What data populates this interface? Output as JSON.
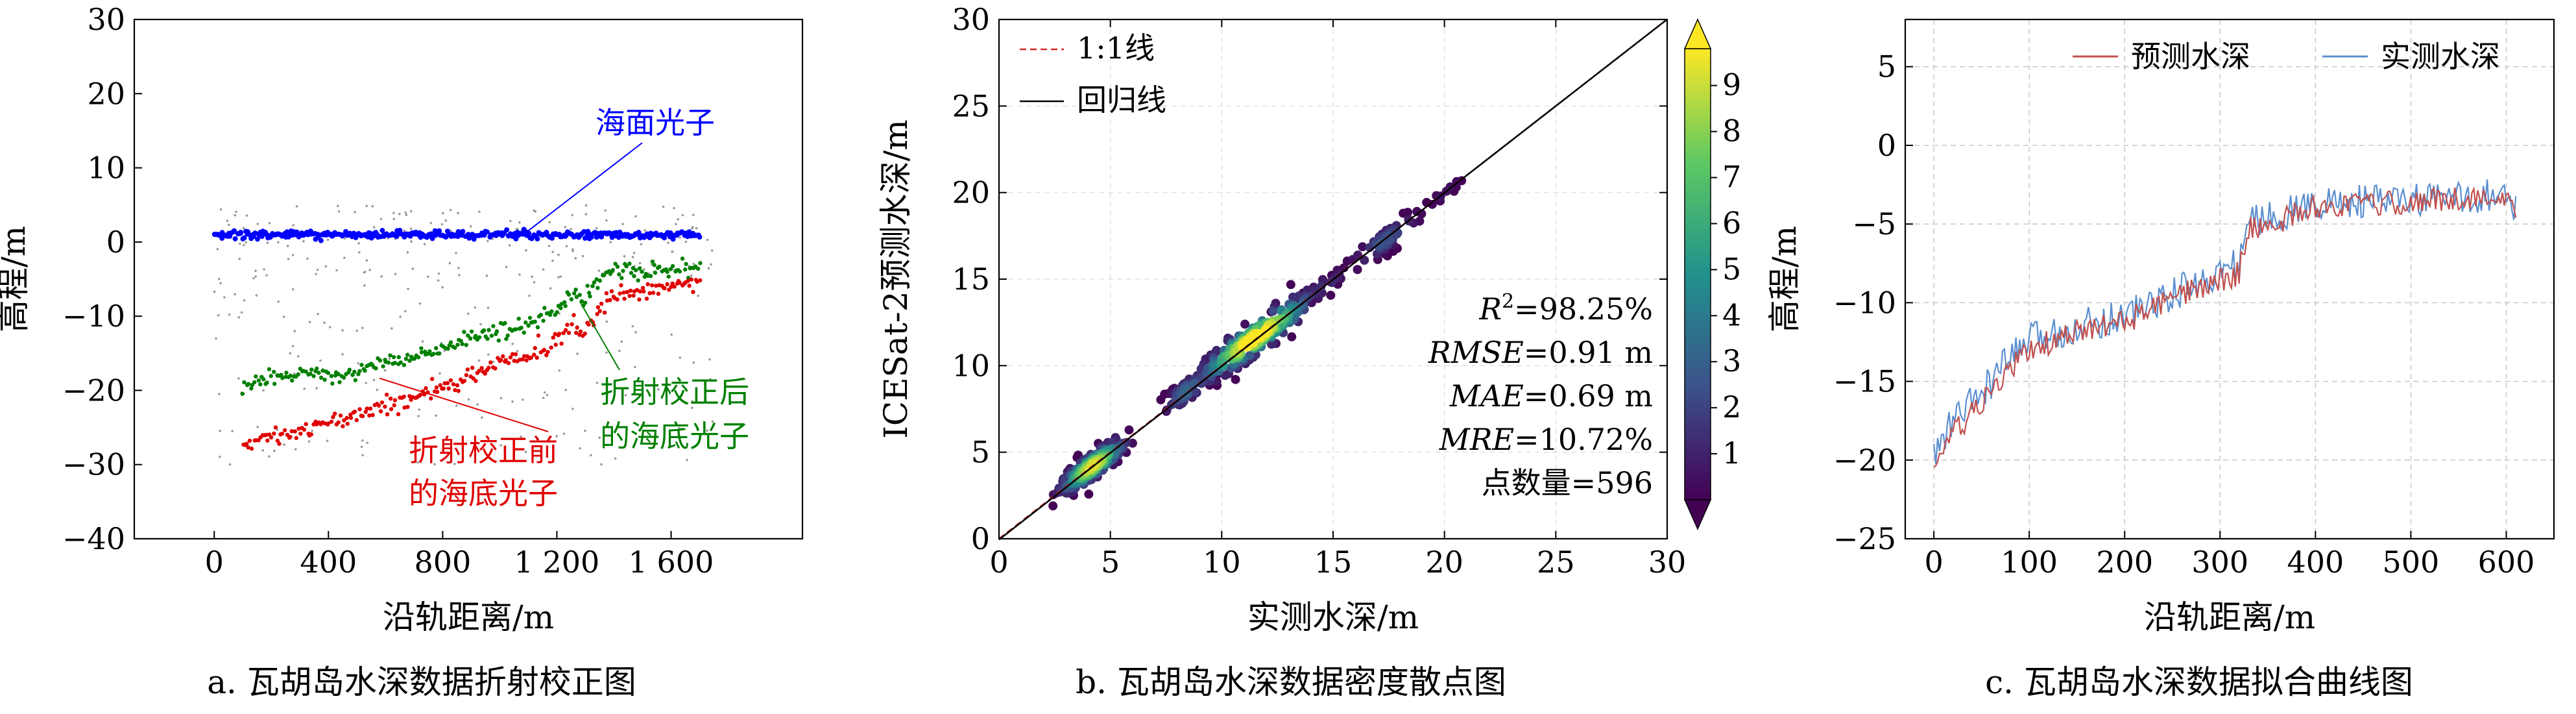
{
  "figure": {
    "title": ""
  },
  "chart_data": [
    {
      "type": "scatter",
      "caption": "a. 瓦胡岛水深数据折射校正图",
      "xlabel": "沿轨距离/m",
      "ylabel": "高程/m",
      "xlim": [
        -280,
        2060
      ],
      "ylim": [
        -40,
        30
      ],
      "xticks": [
        0,
        400,
        800,
        1200,
        1600
      ],
      "xtick_labels": [
        "0",
        "400",
        "800",
        "1 200",
        "1 600"
      ],
      "yticks": [
        -40,
        -30,
        -20,
        -10,
        0,
        10,
        20,
        30
      ],
      "ytick_labels": [
        "−40",
        "−30",
        "−20",
        "−10",
        "0",
        "10",
        "20",
        "30"
      ],
      "grid": false,
      "series": [
        {
          "name": "海面光子",
          "color": "#0000ff",
          "x": [
            0,
            100,
            200,
            300,
            400,
            500,
            600,
            700,
            800,
            900,
            1000,
            1100,
            1200,
            1300,
            1400,
            1500,
            1600,
            1700
          ],
          "y": [
            1,
            1,
            1,
            1,
            1,
            1,
            1,
            1,
            1,
            1,
            1,
            1,
            1,
            1,
            1,
            1,
            1,
            1
          ]
        },
        {
          "name": "折射校正后的海底光子",
          "color": "#008000",
          "x": [
            100,
            150,
            200,
            450,
            600,
            700,
            800,
            900,
            1000,
            1100,
            1200,
            1250,
            1300,
            1350,
            1400,
            1500,
            1600,
            1700
          ],
          "y": [
            -20,
            -19,
            -18,
            -18,
            -16,
            -15.5,
            -14,
            -13,
            -12,
            -11,
            -9,
            -7,
            -8,
            -5,
            -4,
            -4,
            -3.5,
            -3.5
          ]
        },
        {
          "name": "折射校正前的海底光子",
          "color": "#e00000",
          "x": [
            100,
            150,
            200,
            400,
            500,
            600,
            700,
            800,
            900,
            1000,
            1100,
            1200,
            1250,
            1300,
            1350,
            1400,
            1500,
            1600,
            1700
          ],
          "y": [
            -27,
            -26.5,
            -26,
            -24.5,
            -23.5,
            -22,
            -21,
            -19.5,
            -18,
            -16.5,
            -15.5,
            -13.5,
            -11,
            -12,
            -9,
            -7,
            -6.5,
            -6,
            -5
          ]
        }
      ],
      "annotations": [
        {
          "text": "海面光子",
          "color": "#0000ff",
          "points_to": [
            1100,
            1
          ]
        },
        {
          "text": "折射校正后",
          "text2": "的海底光子",
          "color": "#008000",
          "points_to": [
            1280,
            -8
          ]
        },
        {
          "text": "折射校正前",
          "text2": "的海底光子",
          "color": "#e00000",
          "points_to": [
            920,
            -17.5
          ]
        }
      ]
    },
    {
      "type": "scatter",
      "caption": "b. 瓦胡岛水深数据密度散点图",
      "xlabel": "实测水深/m",
      "ylabel": "ICESat-2预测水深/m",
      "xlim": [
        0,
        30
      ],
      "ylim": [
        0,
        30
      ],
      "xticks": [
        0,
        5,
        10,
        15,
        20,
        25,
        30
      ],
      "yticks": [
        0,
        5,
        10,
        15,
        20,
        25,
        30
      ],
      "grid": true,
      "clusters": [
        {
          "cx": 4.2,
          "cy": 4.2,
          "sx": 0.75,
          "sy": 0.85,
          "n": 200
        },
        {
          "cx": 8.5,
          "cy": 8.6,
          "sx": 0.6,
          "sy": 0.8,
          "n": 70
        },
        {
          "cx": 11.5,
          "cy": 11.6,
          "sx": 1.3,
          "sy": 1.1,
          "n": 230
        },
        {
          "cx": 17.3,
          "cy": 17.2,
          "sx": 0.8,
          "sy": 0.8,
          "n": 55
        },
        {
          "cx": 20,
          "cy": 20,
          "sx": 0.4,
          "sy": 0.4,
          "n": 12
        },
        {
          "cx": 14.5,
          "cy": 14.5,
          "sx": 0.7,
          "sy": 0.7,
          "n": 29
        }
      ],
      "lines": [
        {
          "name": "1:1线",
          "color": "#d62728",
          "dash": true,
          "slope": 1,
          "intercept": 0
        },
        {
          "name": "回归线",
          "color": "#000000",
          "dash": false,
          "slope": 1.002,
          "intercept": -0.05
        }
      ],
      "stats": [
        {
          "italic": "R",
          "sup": "2",
          "rest": "=98.25%"
        },
        {
          "italic": "RMSE",
          "sup": "",
          "rest": "=0.91 m"
        },
        {
          "italic": "MAE",
          "sup": "",
          "rest": "=0.69 m"
        },
        {
          "italic": "MRE",
          "sup": "",
          "rest": "=10.72%"
        },
        {
          "italic": "",
          "sup": "",
          "rest": "点数量=596"
        }
      ],
      "colorbar": {
        "min": 0,
        "max": 9.8,
        "ticks": [
          1,
          2,
          3,
          4,
          5,
          6,
          7,
          8,
          9
        ],
        "colormap": "viridis"
      }
    },
    {
      "type": "line",
      "caption": "c. 瓦胡岛水深数据拟合曲线图",
      "xlabel": "沿轨距离/m",
      "ylabel": "高程/m",
      "xlim": [
        -30,
        650
      ],
      "ylim": [
        -25,
        8
      ],
      "xticks": [
        0,
        100,
        200,
        300,
        400,
        500,
        600
      ],
      "yticks": [
        -25,
        -20,
        -15,
        -10,
        -5,
        0,
        5
      ],
      "ytick_labels": [
        "−25",
        "−20",
        "−15",
        "−10",
        "−5",
        "0",
        "5"
      ],
      "grid": true,
      "legend": "top-right",
      "x": [
        0,
        20,
        50,
        80,
        100,
        150,
        200,
        250,
        290,
        320,
        330,
        350,
        400,
        450,
        500,
        550,
        580,
        610
      ],
      "series": [
        {
          "name": "预测水深",
          "color": "#c0504d",
          "values": [
            -20.3,
            -18.3,
            -16.5,
            -14.2,
            -13,
            -11.9,
            -11.2,
            -9.8,
            -8.8,
            -8.1,
            -5.3,
            -5.1,
            -3.9,
            -3.8,
            -3.6,
            -3.4,
            -3.2,
            -4
          ]
        },
        {
          "name": "实测水深",
          "color": "#5b8fd0",
          "values": [
            -19.8,
            -17.5,
            -15.8,
            -13.5,
            -12.4,
            -11.5,
            -10.8,
            -9.5,
            -8.4,
            -7.5,
            -4.8,
            -4.6,
            -3.7,
            -3.6,
            -3.5,
            -3.4,
            -3.1,
            -3.8
          ]
        }
      ]
    }
  ]
}
